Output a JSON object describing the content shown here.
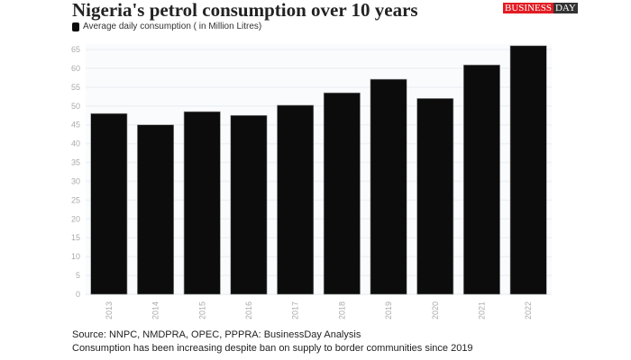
{
  "header": {
    "title": "Nigeria's petrol consumption over 10 years",
    "logo_left": "BUSINESS",
    "logo_right": "DAY"
  },
  "footer": {
    "source": "Source: NNPC, NMDPRA, OPEC, PPPRA: BusinessDay Analysis",
    "note": "Consumption has been increasing despite ban on supply to border communities since 2019"
  },
  "chart_data": {
    "type": "bar",
    "title": "Nigeria's petrol consumption over 10 years",
    "categories": [
      "2013",
      "2014",
      "2015",
      "2016",
      "2017",
      "2018",
      "2019",
      "2020",
      "2021",
      "2022"
    ],
    "series": [
      {
        "name": "Average daily consumption ( in Million Litres)",
        "values": [
          48,
          45,
          48.5,
          47.5,
          50.2,
          53.5,
          57.1,
          52,
          60.9,
          66
        ],
        "color": "#0c0c0c"
      }
    ],
    "ylim": [
      0,
      65
    ],
    "yticks": [
      0,
      5,
      10,
      15,
      20,
      25,
      30,
      35,
      40,
      45,
      50,
      55,
      60,
      65
    ],
    "grid": true,
    "legend": "top-left",
    "xlabel": "",
    "ylabel": ""
  }
}
